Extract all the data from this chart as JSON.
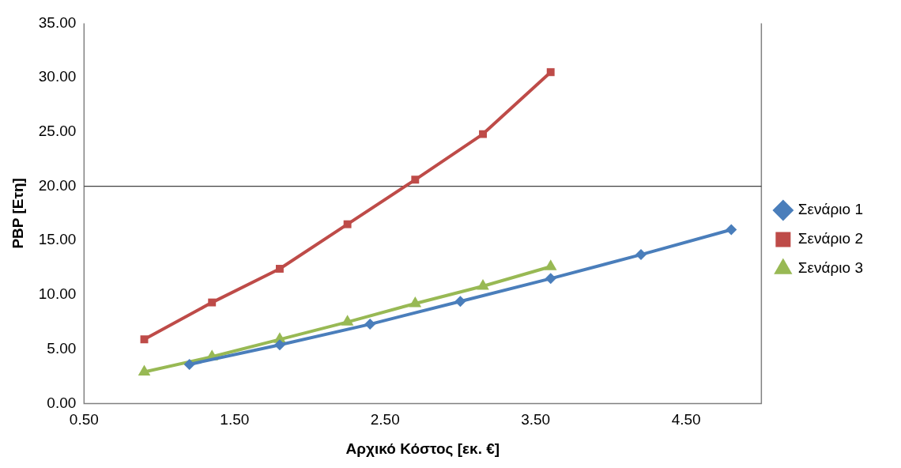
{
  "chart_data": {
    "type": "line",
    "xlabel": "Αρχικό Κόστος [εκ. €]",
    "ylabel": "PBP [Ετη]",
    "xlim": [
      0.5,
      5.0
    ],
    "xticks": [
      {
        "value": 0.5,
        "label": "0.50"
      },
      {
        "value": 1.5,
        "label": "1.50"
      },
      {
        "value": 2.5,
        "label": "2.50"
      },
      {
        "value": 3.5,
        "label": "3.50"
      },
      {
        "value": 4.5,
        "label": "4.50"
      }
    ],
    "ylim": [
      0,
      35
    ],
    "yticks": [
      {
        "value": 0,
        "label": "0.00"
      },
      {
        "value": 5,
        "label": "5.00"
      },
      {
        "value": 10,
        "label": "10.00"
      },
      {
        "value": 15,
        "label": "15.00"
      },
      {
        "value": 20,
        "label": "20.00"
      },
      {
        "value": 25,
        "label": "25.00"
      },
      {
        "value": 30,
        "label": "30.00"
      },
      {
        "value": 35,
        "label": "35.00"
      }
    ],
    "grid": false,
    "legend": "right",
    "line_style": "solid",
    "ref_lines": [
      {
        "axis": "y",
        "value": 20,
        "color": "#404040"
      }
    ],
    "series": [
      {
        "name": "Σενάριο 1",
        "color": "#4a7ebb",
        "marker": "diamond",
        "x": [
          1.2,
          1.8,
          2.4,
          3.0,
          3.6,
          4.2,
          4.8
        ],
        "values": [
          3.6,
          5.4,
          7.3,
          9.4,
          11.5,
          13.7,
          16.0
        ]
      },
      {
        "name": "Σενάριο 2",
        "color": "#be4b48",
        "marker": "square",
        "x": [
          0.9,
          1.35,
          1.8,
          2.25,
          2.7,
          3.15,
          3.6
        ],
        "values": [
          5.9,
          9.3,
          12.4,
          16.5,
          20.6,
          24.8,
          30.5
        ]
      },
      {
        "name": "Σενάριο 3",
        "color": "#98b954",
        "marker": "triangle",
        "x": [
          0.9,
          1.35,
          1.8,
          2.25,
          2.7,
          3.15,
          3.6
        ],
        "values": [
          2.9,
          4.3,
          5.9,
          7.5,
          9.2,
          10.8,
          12.6
        ]
      }
    ]
  }
}
